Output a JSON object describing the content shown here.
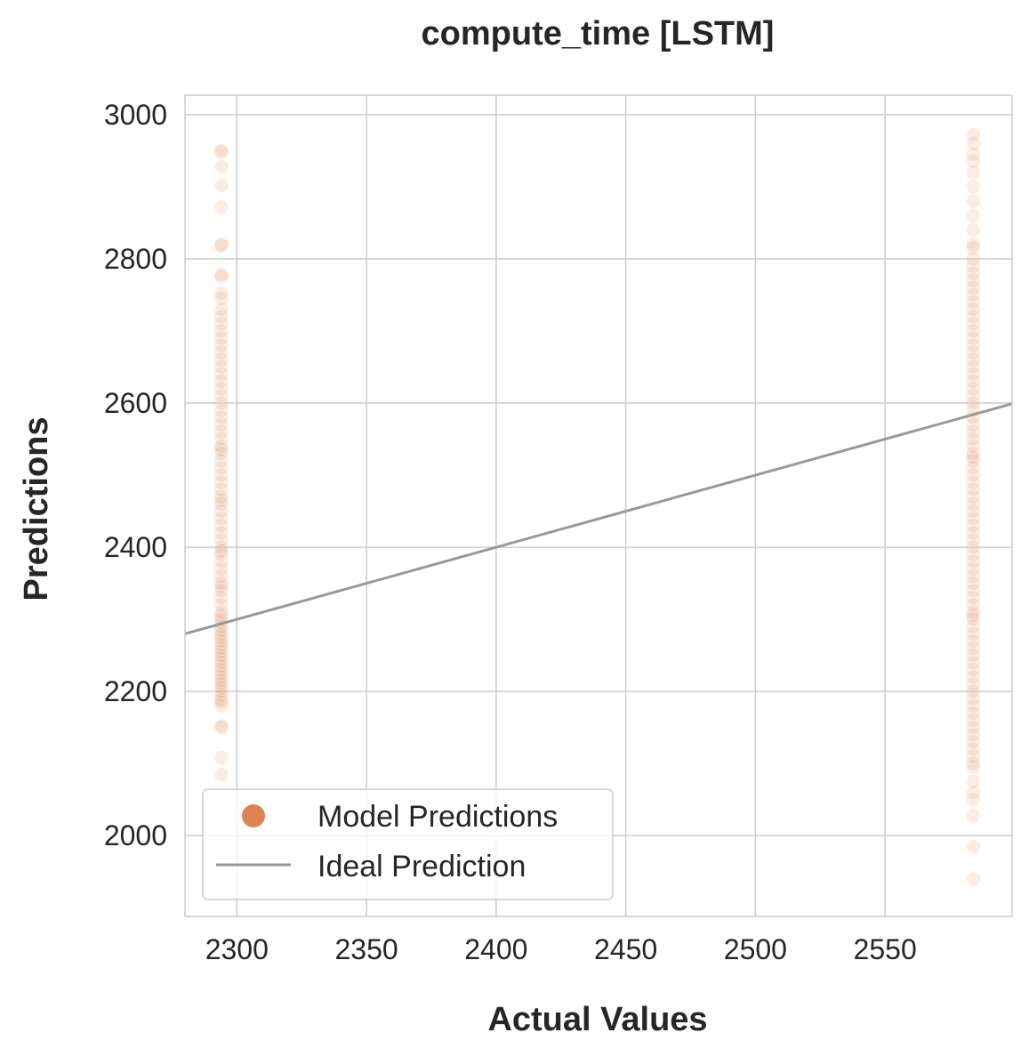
{
  "chart_data": {
    "type": "scatter",
    "title": "compute_time [LSTM]",
    "xlabel": "Actual Values",
    "ylabel": "Predictions",
    "xlim": [
      2280,
      2599
    ],
    "ylim": [
      1888,
      3027
    ],
    "xticks": [
      2300,
      2350,
      2400,
      2450,
      2500,
      2550
    ],
    "yticks": [
      2000,
      2200,
      2400,
      2600,
      2800,
      3000
    ],
    "grid": true,
    "legend_position": "lower-left",
    "series": [
      {
        "name": "Model Predictions",
        "kind": "scatter",
        "color": "#dd8452",
        "opacity": 0.15,
        "groups": [
          {
            "x": 2294,
            "y": [
              2085,
              2108,
              2150,
              2152,
              2180,
              2185,
              2188,
              2195,
              2200,
              2205,
              2210,
              2215,
              2220,
              2225,
              2230,
              2235,
              2240,
              2245,
              2250,
              2255,
              2260,
              2265,
              2270,
              2275,
              2280,
              2285,
              2290,
              2295,
              2300,
              2305,
              2310,
              2320,
              2330,
              2340,
              2345,
              2350,
              2360,
              2370,
              2380,
              2390,
              2395,
              2400,
              2410,
              2420,
              2430,
              2440,
              2450,
              2460,
              2465,
              2470,
              2480,
              2490,
              2500,
              2510,
              2520,
              2530,
              2535,
              2540,
              2550,
              2560,
              2570,
              2580,
              2590,
              2600,
              2610,
              2620,
              2630,
              2640,
              2650,
              2660,
              2670,
              2680,
              2690,
              2700,
              2710,
              2720,
              2730,
              2745,
              2752,
              2775,
              2778,
              2818,
              2820,
              2872,
              2902,
              2928,
              2948,
              2950
            ]
          },
          {
            "x": 2584,
            "y": [
              1940,
              1985,
              2028,
              2050,
              2060,
              2075,
              2095,
              2100,
              2110,
              2120,
              2130,
              2140,
              2150,
              2160,
              2170,
              2180,
              2190,
              2200,
              2210,
              2220,
              2230,
              2240,
              2250,
              2260,
              2270,
              2280,
              2290,
              2300,
              2305,
              2310,
              2320,
              2330,
              2340,
              2350,
              2360,
              2370,
              2380,
              2390,
              2400,
              2410,
              2420,
              2430,
              2440,
              2450,
              2460,
              2470,
              2480,
              2490,
              2500,
              2510,
              2520,
              2525,
              2530,
              2540,
              2550,
              2560,
              2570,
              2580,
              2590,
              2600,
              2610,
              2620,
              2630,
              2640,
              2650,
              2660,
              2670,
              2680,
              2690,
              2700,
              2710,
              2720,
              2730,
              2740,
              2750,
              2760,
              2770,
              2780,
              2790,
              2800,
              2815,
              2820,
              2840,
              2860,
              2880,
              2900,
              2920,
              2935,
              2945,
              2960,
              2972
            ]
          }
        ]
      },
      {
        "name": "Ideal Prediction",
        "kind": "line",
        "color": "#999999",
        "x": [
          2280,
          2599
        ],
        "y": [
          2280,
          2599
        ]
      }
    ]
  }
}
